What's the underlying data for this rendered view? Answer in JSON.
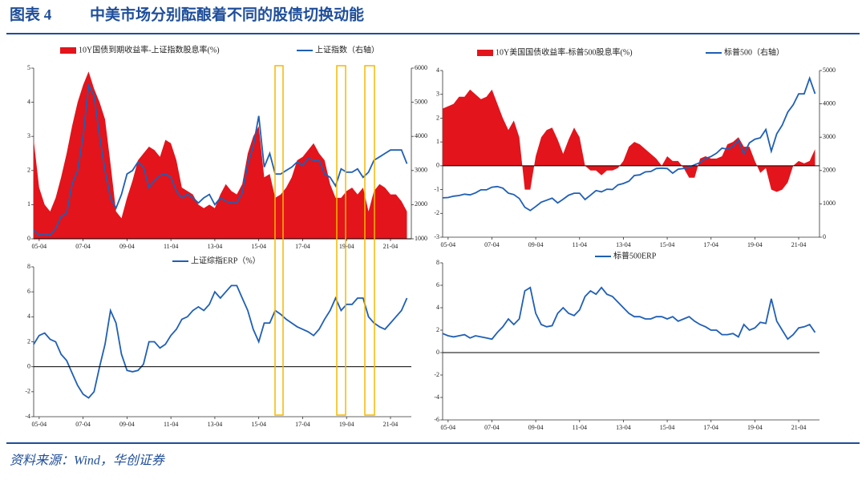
{
  "title_label": "图表 4",
  "title": "中美市场分别酝酿着不同的股债切换动能",
  "source": "资料来源：Wind，华创证券",
  "chart_data": [
    {
      "type": "area-line",
      "x": [
        2005.0,
        2005.25,
        2005.5,
        2005.75,
        2006.0,
        2006.25,
        2006.5,
        2006.75,
        2007.0,
        2007.25,
        2007.5,
        2007.75,
        2008.0,
        2008.25,
        2008.5,
        2008.75,
        2009.0,
        2009.25,
        2009.5,
        2009.75,
        2010.0,
        2010.25,
        2010.5,
        2010.75,
        2011.0,
        2011.25,
        2011.5,
        2011.75,
        2012.0,
        2012.25,
        2012.5,
        2012.75,
        2013.0,
        2013.25,
        2013.5,
        2013.75,
        2014.0,
        2014.25,
        2014.5,
        2014.75,
        2015.0,
        2015.25,
        2015.5,
        2015.75,
        2016.0,
        2016.25,
        2016.5,
        2016.75,
        2017.0,
        2017.25,
        2017.5,
        2017.75,
        2018.0,
        2018.25,
        2018.5,
        2018.75,
        2019.0,
        2019.25,
        2019.5,
        2019.75,
        2020.0,
        2020.25,
        2020.5,
        2020.75,
        2021.0,
        2021.25,
        2021.5,
        2021.75,
        2022.0
      ],
      "series": [
        {
          "name": "10Y国债到期收益率-上证指数股息率(%)",
          "color": "#e3141b",
          "values": [
            2.9,
            1.5,
            1.0,
            0.8,
            1.2,
            1.8,
            2.5,
            3.3,
            4.0,
            4.5,
            4.9,
            4.4,
            4.0,
            3.5,
            2.2,
            0.8,
            0.6,
            1.2,
            1.7,
            2.3,
            2.5,
            2.7,
            2.6,
            2.4,
            2.9,
            2.8,
            2.3,
            1.5,
            1.4,
            1.3,
            1.0,
            0.9,
            1.0,
            0.9,
            1.3,
            1.6,
            1.4,
            1.3,
            1.6,
            2.5,
            3.0,
            3.3,
            1.8,
            1.9,
            1.2,
            1.3,
            1.5,
            1.8,
            2.3,
            2.4,
            2.6,
            2.8,
            2.5,
            2.3,
            1.6,
            1.2,
            1.2,
            1.4,
            1.5,
            1.3,
            1.5,
            0.8,
            1.4,
            1.6,
            1.5,
            1.3,
            1.3,
            1.1,
            0.8
          ]
        },
        {
          "name": "上证指数（右轴）",
          "color": "#1f5fb5",
          "axis": "y2",
          "values": [
            1250,
            1100,
            1150,
            1100,
            1300,
            1650,
            1750,
            2600,
            3000,
            4000,
            5500,
            5200,
            4000,
            3000,
            2200,
            1900,
            2300,
            2900,
            3000,
            3250,
            3100,
            2500,
            2700,
            2850,
            2900,
            2800,
            2400,
            2200,
            2300,
            2200,
            2050,
            2200,
            2300,
            2000,
            2200,
            2100,
            2050,
            2050,
            2350,
            3200,
            3700,
            4600,
            3100,
            3500,
            2900,
            2900,
            3000,
            3100,
            3250,
            3150,
            3350,
            3300,
            3300,
            2900,
            2800,
            2550,
            3050,
            2950,
            2950,
            3050,
            2800,
            2950,
            3300,
            3400,
            3500,
            3600,
            3600,
            3600,
            3200
          ]
        }
      ],
      "xlim": [
        2005.0,
        2022.2
      ],
      "xticks": [
        {
          "value": 2005.25,
          "label": "05-04"
        },
        {
          "value": 2007.25,
          "label": "07-04"
        },
        {
          "value": 2009.25,
          "label": "09-04"
        },
        {
          "value": 2011.25,
          "label": "11-04"
        },
        {
          "value": 2013.25,
          "label": "13-04"
        },
        {
          "value": 2015.25,
          "label": "15-04"
        },
        {
          "value": 2017.25,
          "label": "17-04"
        },
        {
          "value": 2019.25,
          "label": "19-04"
        },
        {
          "value": 2021.25,
          "label": "21-04"
        }
      ],
      "ylim": [
        0,
        5
      ],
      "yticks": [
        0,
        1,
        2,
        3,
        4,
        5
      ],
      "y2lim": [
        1000,
        6000
      ],
      "y2ticks": [
        1000,
        2000,
        3000,
        4000,
        5000,
        6000
      ]
    },
    {
      "type": "area-line",
      "x": [
        2005.0,
        2005.25,
        2005.5,
        2005.75,
        2006.0,
        2006.25,
        2006.5,
        2006.75,
        2007.0,
        2007.25,
        2007.5,
        2007.75,
        2008.0,
        2008.25,
        2008.5,
        2008.75,
        2009.0,
        2009.25,
        2009.5,
        2009.75,
        2010.0,
        2010.25,
        2010.5,
        2010.75,
        2011.0,
        2011.25,
        2011.5,
        2011.75,
        2012.0,
        2012.25,
        2012.5,
        2012.75,
        2013.0,
        2013.25,
        2013.5,
        2013.75,
        2014.0,
        2014.25,
        2014.5,
        2014.75,
        2015.0,
        2015.25,
        2015.5,
        2015.75,
        2016.0,
        2016.25,
        2016.5,
        2016.75,
        2017.0,
        2017.25,
        2017.5,
        2017.75,
        2018.0,
        2018.25,
        2018.5,
        2018.75,
        2019.0,
        2019.25,
        2019.5,
        2019.75,
        2020.0,
        2020.25,
        2020.5,
        2020.75,
        2021.0,
        2021.25,
        2021.5,
        2021.75,
        2022.0
      ],
      "series": [
        {
          "name": "10Y美国国债收益率-标普500股息率(%)",
          "color": "#e3141b",
          "values": [
            2.4,
            2.5,
            2.6,
            2.9,
            2.9,
            3.2,
            3.0,
            2.8,
            2.9,
            3.2,
            2.6,
            2.0,
            1.5,
            1.9,
            1.2,
            -1.0,
            -1.0,
            0.4,
            1.2,
            1.5,
            1.6,
            1.1,
            0.5,
            1.1,
            1.6,
            1.2,
            0.0,
            -0.2,
            -0.2,
            -0.4,
            -0.2,
            -0.2,
            -0.1,
            0.2,
            0.8,
            1.0,
            0.9,
            0.7,
            0.5,
            0.3,
            0.0,
            0.4,
            0.2,
            0.2,
            -0.1,
            -0.5,
            -0.5,
            0.3,
            0.4,
            0.3,
            0.3,
            0.4,
            0.9,
            1.0,
            1.2,
            0.8,
            0.8,
            0.2,
            -0.3,
            -0.1,
            -1.0,
            -1.1,
            -1.0,
            -0.7,
            0.0,
            0.2,
            0.1,
            0.2,
            0.7
          ]
        },
        {
          "name": "标普500（右轴）",
          "color": "#1f5fb5",
          "axis": "y2",
          "values": [
            1180,
            1190,
            1230,
            1250,
            1290,
            1270,
            1330,
            1420,
            1420,
            1500,
            1520,
            1470,
            1320,
            1280,
            1160,
            900,
            800,
            920,
            1050,
            1110,
            1170,
            1030,
            1140,
            1260,
            1320,
            1320,
            1130,
            1260,
            1400,
            1360,
            1440,
            1430,
            1570,
            1610,
            1680,
            1850,
            1870,
            1960,
            1970,
            2060,
            2070,
            2060,
            1920,
            2040,
            2060,
            2100,
            2170,
            2240,
            2360,
            2420,
            2520,
            2670,
            2640,
            2720,
            2910,
            2500,
            2830,
            2940,
            2980,
            3230,
            2580,
            3100,
            3360,
            3750,
            3970,
            4300,
            4300,
            4770,
            4300
          ]
        }
      ],
      "xlim": [
        2005.0,
        2022.2
      ],
      "xticks": [
        {
          "value": 2005.25,
          "label": "05-04"
        },
        {
          "value": 2007.25,
          "label": "07-04"
        },
        {
          "value": 2009.25,
          "label": "09-04"
        },
        {
          "value": 2011.25,
          "label": "11-04"
        },
        {
          "value": 2013.25,
          "label": "13-04"
        },
        {
          "value": 2015.25,
          "label": "15-04"
        },
        {
          "value": 2017.25,
          "label": "17-04"
        },
        {
          "value": 2019.25,
          "label": "19-04"
        },
        {
          "value": 2021.25,
          "label": "21-04"
        }
      ],
      "ylim": [
        -3,
        4
      ],
      "yticks": [
        -3,
        -2,
        -1,
        0,
        1,
        2,
        3,
        4
      ],
      "y2lim": [
        0,
        5000
      ],
      "y2ticks": [
        0,
        1000,
        2000,
        3000,
        4000,
        5000
      ]
    },
    {
      "type": "line",
      "x": [
        2005.0,
        2005.25,
        2005.5,
        2005.75,
        2006.0,
        2006.25,
        2006.5,
        2006.75,
        2007.0,
        2007.25,
        2007.5,
        2007.75,
        2008.0,
        2008.25,
        2008.5,
        2008.75,
        2009.0,
        2009.25,
        2009.5,
        2009.75,
        2010.0,
        2010.25,
        2010.5,
        2010.75,
        2011.0,
        2011.25,
        2011.5,
        2011.75,
        2012.0,
        2012.25,
        2012.5,
        2012.75,
        2013.0,
        2013.25,
        2013.5,
        2013.75,
        2014.0,
        2014.25,
        2014.5,
        2014.75,
        2015.0,
        2015.25,
        2015.5,
        2015.75,
        2016.0,
        2016.25,
        2016.5,
        2016.75,
        2017.0,
        2017.25,
        2017.5,
        2017.75,
        2018.0,
        2018.25,
        2018.5,
        2018.75,
        2019.0,
        2019.25,
        2019.5,
        2019.75,
        2020.0,
        2020.25,
        2020.5,
        2020.75,
        2021.0,
        2021.25,
        2021.5,
        2021.75,
        2022.0
      ],
      "series": [
        {
          "name": "上证综指ERP（%）",
          "color": "#1f5fb5",
          "values": [
            1.8,
            2.5,
            2.7,
            2.2,
            2.0,
            1.0,
            0.5,
            -0.5,
            -1.5,
            -2.2,
            -2.5,
            -2.0,
            0.0,
            1.8,
            4.5,
            3.5,
            1.0,
            -0.3,
            -0.4,
            -0.3,
            0.2,
            2.0,
            2.0,
            1.5,
            1.8,
            2.5,
            3.0,
            3.8,
            4.0,
            4.5,
            4.8,
            4.5,
            5.0,
            6.0,
            5.5,
            6.0,
            6.5,
            6.5,
            5.5,
            4.5,
            3.0,
            2.0,
            3.5,
            3.5,
            4.5,
            4.2,
            3.8,
            3.5,
            3.2,
            3.0,
            2.8,
            2.5,
            3.0,
            3.8,
            4.5,
            5.5,
            4.5,
            5.0,
            5.0,
            5.5,
            5.5,
            4.0,
            3.5,
            3.2,
            3.0,
            3.5,
            4.0,
            4.5,
            5.5
          ]
        }
      ],
      "xlim": [
        2005.0,
        2022.2
      ],
      "xticks": [
        {
          "value": 2005.25,
          "label": "05-04"
        },
        {
          "value": 2007.25,
          "label": "07-04"
        },
        {
          "value": 2009.25,
          "label": "09-04"
        },
        {
          "value": 2011.25,
          "label": "11-04"
        },
        {
          "value": 2013.25,
          "label": "13-04"
        },
        {
          "value": 2015.25,
          "label": "15-04"
        },
        {
          "value": 2017.25,
          "label": "17-04"
        },
        {
          "value": 2019.25,
          "label": "19-04"
        },
        {
          "value": 2021.25,
          "label": "21-04"
        }
      ],
      "ylim": [
        -4,
        8
      ],
      "yticks": [
        -4,
        -2,
        0,
        2,
        4,
        6,
        8
      ]
    },
    {
      "type": "line",
      "x": [
        2005.0,
        2005.25,
        2005.5,
        2005.75,
        2006.0,
        2006.25,
        2006.5,
        2006.75,
        2007.0,
        2007.25,
        2007.5,
        2007.75,
        2008.0,
        2008.25,
        2008.5,
        2008.75,
        2009.0,
        2009.25,
        2009.5,
        2009.75,
        2010.0,
        2010.25,
        2010.5,
        2010.75,
        2011.0,
        2011.25,
        2011.5,
        2011.75,
        2012.0,
        2012.25,
        2012.5,
        2012.75,
        2013.0,
        2013.25,
        2013.5,
        2013.75,
        2014.0,
        2014.25,
        2014.5,
        2014.75,
        2015.0,
        2015.25,
        2015.5,
        2015.75,
        2016.0,
        2016.25,
        2016.5,
        2016.75,
        2017.0,
        2017.25,
        2017.5,
        2017.75,
        2018.0,
        2018.25,
        2018.5,
        2018.75,
        2019.0,
        2019.25,
        2019.5,
        2019.75,
        2020.0,
        2020.25,
        2020.5,
        2020.75,
        2021.0,
        2021.25,
        2021.5,
        2021.75,
        2022.0
      ],
      "series": [
        {
          "name": "标普500ERP",
          "color": "#1f5fb5",
          "values": [
            1.7,
            1.5,
            1.4,
            1.5,
            1.6,
            1.3,
            1.5,
            1.4,
            1.3,
            1.2,
            1.8,
            2.3,
            3.0,
            2.5,
            3.0,
            5.5,
            5.8,
            3.5,
            2.5,
            2.3,
            2.4,
            3.5,
            4.0,
            3.5,
            3.3,
            3.8,
            5.0,
            5.5,
            5.2,
            5.8,
            5.2,
            5.0,
            4.5,
            4.0,
            3.5,
            3.2,
            3.2,
            3.0,
            3.0,
            3.2,
            3.2,
            3.0,
            3.2,
            2.8,
            3.0,
            3.2,
            2.8,
            2.5,
            2.3,
            2.0,
            2.0,
            1.6,
            1.6,
            1.7,
            1.4,
            2.5,
            2.0,
            2.2,
            2.7,
            2.6,
            4.8,
            2.8,
            2.0,
            1.2,
            1.6,
            2.2,
            2.3,
            2.5,
            1.8
          ]
        }
      ],
      "xlim": [
        2005.0,
        2022.2
      ],
      "xticks": [
        {
          "value": 2005.25,
          "label": "05-04"
        },
        {
          "value": 2007.25,
          "label": "07-04"
        },
        {
          "value": 2009.25,
          "label": "09-04"
        },
        {
          "value": 2011.25,
          "label": "11-04"
        },
        {
          "value": 2013.25,
          "label": "13-04"
        },
        {
          "value": 2015.25,
          "label": "15-04"
        },
        {
          "value": 2017.25,
          "label": "17-04"
        },
        {
          "value": 2019.25,
          "label": "19-04"
        },
        {
          "value": 2021.25,
          "label": "21-04"
        }
      ],
      "ylim": [
        -6,
        8
      ],
      "yticks": [
        -6,
        -4,
        -2,
        0,
        2,
        4,
        6,
        8
      ]
    }
  ]
}
